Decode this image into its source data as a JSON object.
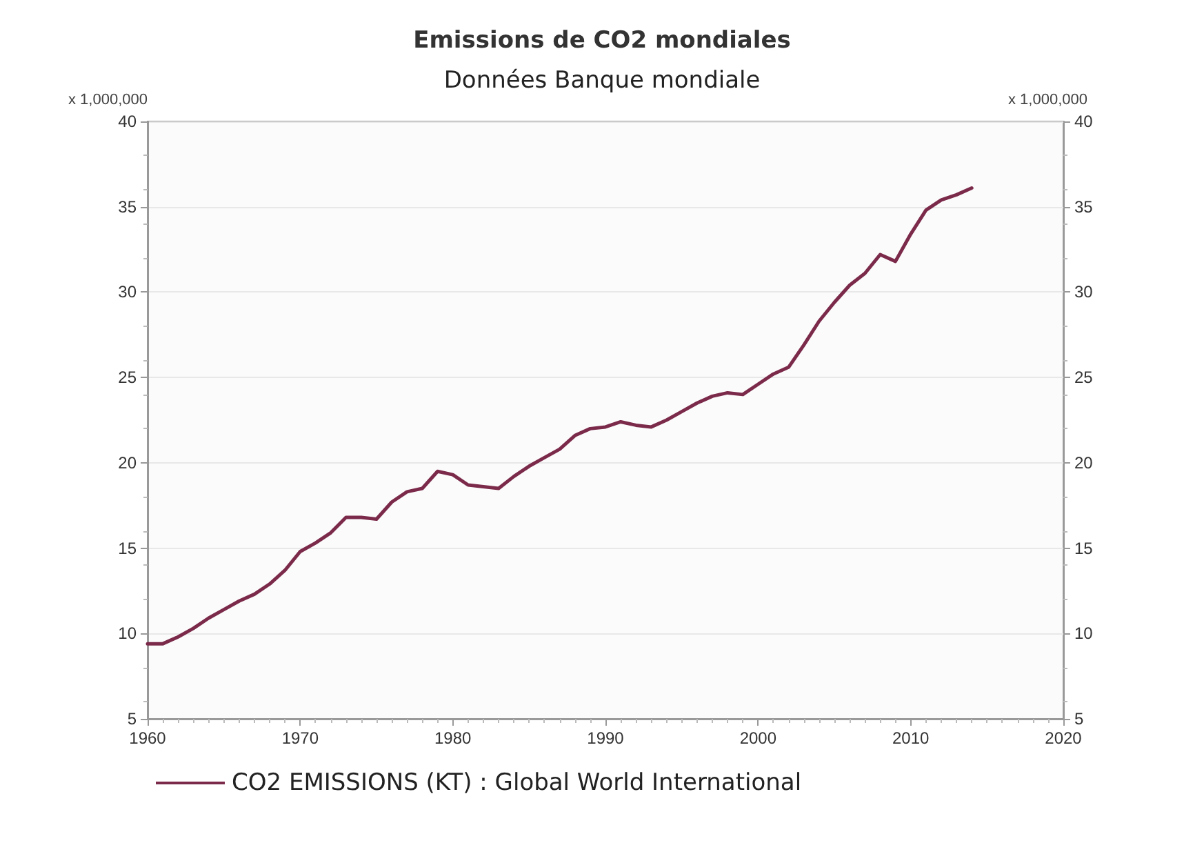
{
  "chart_data": {
    "type": "line",
    "title": "Emissions de CO2 mondiales",
    "subtitle": "Données Banque mondiale",
    "ylabel": "x 1,000,000",
    "y2label": "x 1,000,000",
    "x": [
      1960,
      1961,
      1962,
      1963,
      1964,
      1965,
      1966,
      1967,
      1968,
      1969,
      1970,
      1971,
      1972,
      1973,
      1974,
      1975,
      1976,
      1977,
      1978,
      1979,
      1980,
      1981,
      1982,
      1983,
      1984,
      1985,
      1986,
      1987,
      1988,
      1989,
      1990,
      1991,
      1992,
      1993,
      1994,
      1995,
      1996,
      1997,
      1998,
      1999,
      2000,
      2001,
      2002,
      2003,
      2004,
      2005,
      2006,
      2007,
      2008,
      2009,
      2010,
      2011,
      2012,
      2013,
      2014
    ],
    "series": [
      {
        "name": "CO2 EMISSIONS (KT) : Global World International",
        "color": "#7b2a4a",
        "values": [
          9.4,
          9.4,
          9.8,
          10.3,
          10.9,
          11.4,
          11.9,
          12.3,
          12.9,
          13.7,
          14.8,
          15.3,
          15.9,
          16.8,
          16.8,
          16.7,
          17.7,
          18.3,
          18.5,
          19.5,
          19.3,
          18.7,
          18.6,
          18.5,
          19.2,
          19.8,
          20.3,
          20.8,
          21.6,
          22.0,
          22.1,
          22.4,
          22.2,
          22.1,
          22.5,
          23.0,
          23.5,
          23.9,
          24.1,
          24.0,
          24.6,
          25.2,
          25.6,
          26.9,
          28.3,
          29.4,
          30.4,
          31.1,
          32.2,
          31.8,
          33.4,
          34.8,
          35.4,
          35.7,
          36.1
        ]
      }
    ],
    "xlim": [
      1960,
      2020
    ],
    "xticks": [
      1960,
      1970,
      1980,
      1990,
      2000,
      2010,
      2020
    ],
    "ylim": [
      5,
      40
    ],
    "yticks": [
      5,
      10,
      15,
      20,
      25,
      30,
      35,
      40
    ],
    "y2lim": [
      5,
      40
    ],
    "y2ticks": [
      5,
      10,
      15,
      20,
      25,
      30,
      35,
      40
    ],
    "grid": "y",
    "legend": "bottom",
    "marker": "none",
    "line_style": "solid"
  }
}
